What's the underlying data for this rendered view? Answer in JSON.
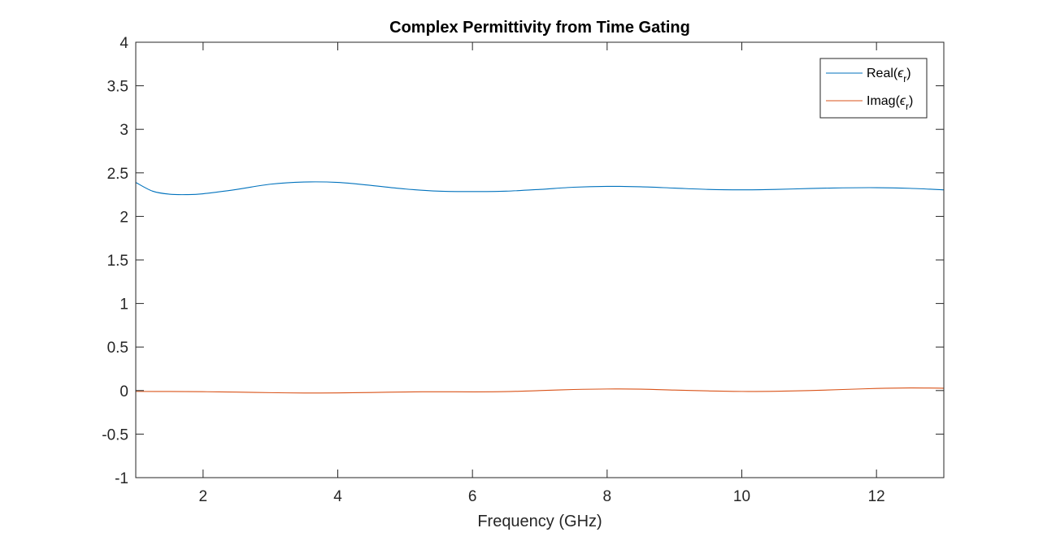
{
  "chart_data": {
    "type": "line",
    "title": "Complex Permittivity from Time Gating",
    "xlabel": "Frequency (GHz)",
    "ylabel": "",
    "xlim": [
      1,
      13
    ],
    "ylim": [
      -1,
      4
    ],
    "xticks": [
      2,
      4,
      6,
      8,
      10,
      12
    ],
    "yticks": [
      -1,
      -0.5,
      0,
      0.5,
      1,
      1.5,
      2,
      2.5,
      3,
      3.5,
      4
    ],
    "xtick_labels": [
      "2",
      "4",
      "6",
      "8",
      "10",
      "12"
    ],
    "ytick_labels": [
      "-1",
      "-0.5",
      "0",
      "0.5",
      "1",
      "1.5",
      "2",
      "2.5",
      "3",
      "3.5",
      "4"
    ],
    "grid": false,
    "box": true,
    "legend_location": "top-right",
    "series": [
      {
        "name": "Real(ε_r)",
        "legend_base": "Real(",
        "legend_symbol": "ϵ",
        "legend_sub": "r",
        "legend_close": ")",
        "color": "#0072BD",
        "x": [
          1,
          1.25,
          1.5,
          1.75,
          2,
          2.5,
          3,
          3.5,
          4,
          4.5,
          5,
          5.5,
          6,
          6.5,
          7,
          7.5,
          8,
          8.5,
          9,
          9.5,
          10,
          10.5,
          11,
          11.5,
          12,
          12.5,
          13
        ],
        "y": [
          2.39,
          2.29,
          2.255,
          2.25,
          2.26,
          2.31,
          2.37,
          2.395,
          2.39,
          2.355,
          2.315,
          2.29,
          2.285,
          2.29,
          2.31,
          2.335,
          2.345,
          2.34,
          2.325,
          2.31,
          2.305,
          2.31,
          2.32,
          2.328,
          2.33,
          2.322,
          2.305
        ]
      },
      {
        "name": "Imag(ε_r)",
        "legend_base": "Imag(",
        "legend_symbol": "ϵ",
        "legend_sub": "r",
        "legend_close": ")",
        "color": "#D95319",
        "x": [
          1,
          1.5,
          2,
          2.5,
          3,
          3.5,
          4,
          4.5,
          5,
          5.5,
          6,
          6.5,
          7,
          7.5,
          8,
          8.5,
          9,
          9.5,
          10,
          10.5,
          11,
          11.5,
          12,
          12.5,
          13
        ],
        "y": [
          -0.01,
          -0.011,
          -0.013,
          -0.018,
          -0.024,
          -0.028,
          -0.027,
          -0.022,
          -0.016,
          -0.014,
          -0.015,
          -0.012,
          0.0,
          0.012,
          0.018,
          0.016,
          0.006,
          -0.004,
          -0.01,
          -0.008,
          0.0,
          0.012,
          0.024,
          0.03,
          0.027
        ]
      }
    ]
  }
}
